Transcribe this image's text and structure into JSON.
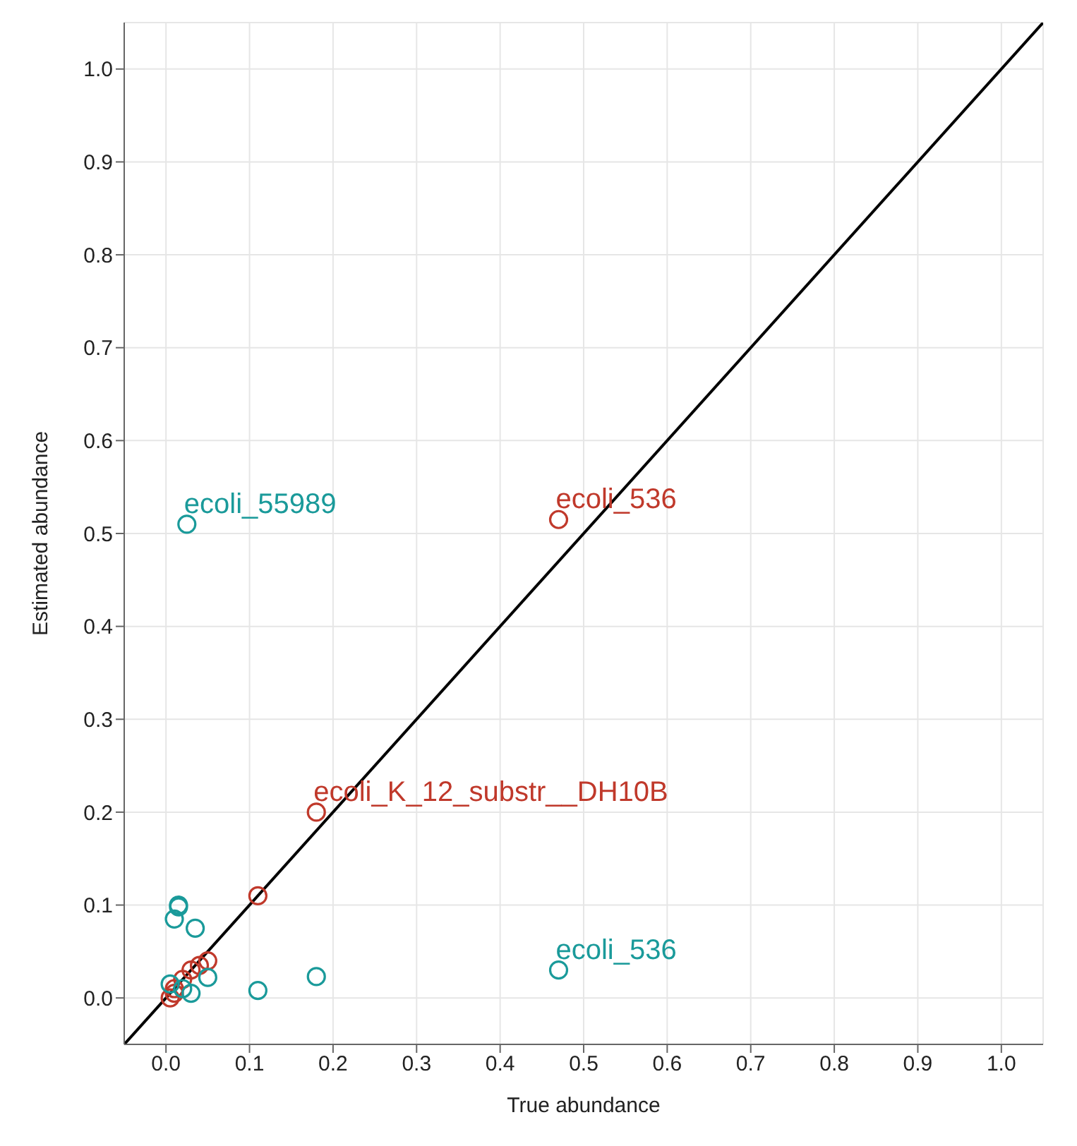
{
  "chart_data": {
    "type": "scatter",
    "xlabel": "True abundance",
    "ylabel": "Estimated abundance",
    "series": [
      {
        "color": "#c0392b",
        "x": [
          0.47,
          0.18,
          0.11,
          0.05,
          0.04,
          0.03,
          0.02,
          0.01,
          0.005,
          0.01
        ],
        "values": [
          0.515,
          0.2,
          0.11,
          0.04,
          0.035,
          0.03,
          0.02,
          0.01,
          0.0,
          0.005
        ]
      },
      {
        "color": "#1a9a9a",
        "x": [
          0.025,
          0.47,
          0.18,
          0.11,
          0.015,
          0.01,
          0.015,
          0.035,
          0.05,
          0.02,
          0.03,
          0.005
        ],
        "values": [
          0.51,
          0.03,
          0.023,
          0.008,
          0.1,
          0.085,
          0.098,
          0.075,
          0.022,
          0.01,
          0.005,
          0.015
        ]
      },
      {
        "type": "line",
        "color": "#000000",
        "marker": "none",
        "x": [
          -0.05,
          1.05
        ],
        "values": [
          -0.05,
          1.05
        ]
      }
    ],
    "marker": "circle",
    "annotations": [
      {
        "text": "ecoli_55989",
        "x": 0.025,
        "y": 0.51
      },
      {
        "text": "ecoli_536",
        "x": 0.47,
        "y": 0.515
      },
      {
        "text": "ecoli_K_12_substr__DH10B",
        "x": 0.18,
        "y": 0.2
      },
      {
        "text": "ecoli_536",
        "x": 0.47,
        "y": 0.03
      }
    ],
    "xlim": [
      -0.05,
      1.05
    ],
    "ylim": [
      -0.05,
      1.05
    ],
    "xticks": [
      {
        "value": 0,
        "label": "0.0"
      },
      {
        "value": 0.1,
        "label": "0.1"
      },
      {
        "value": 0.2,
        "label": "0.2"
      },
      {
        "value": 0.3,
        "label": "0.3"
      },
      {
        "value": 0.4,
        "label": "0.4"
      },
      {
        "value": 0.5,
        "label": "0.5"
      },
      {
        "value": 0.6,
        "label": "0.6"
      },
      {
        "value": 0.7,
        "label": "0.7"
      },
      {
        "value": 0.8,
        "label": "0.8"
      },
      {
        "value": 0.9,
        "label": "0.9"
      },
      {
        "value": 1,
        "label": "1.0"
      }
    ],
    "yticks": [
      {
        "value": 0,
        "label": "0.0"
      },
      {
        "value": 0.1,
        "label": "0.1"
      },
      {
        "value": 0.2,
        "label": "0.2"
      },
      {
        "value": 0.3,
        "label": "0.3"
      },
      {
        "value": 0.4,
        "label": "0.4"
      },
      {
        "value": 0.5,
        "label": "0.5"
      },
      {
        "value": 0.6,
        "label": "0.6"
      },
      {
        "value": 0.7,
        "label": "0.7"
      },
      {
        "value": 0.8,
        "label": "0.8"
      },
      {
        "value": 0.9,
        "label": "0.9"
      },
      {
        "value": 1,
        "label": "1.0"
      }
    ],
    "grid": true
  }
}
